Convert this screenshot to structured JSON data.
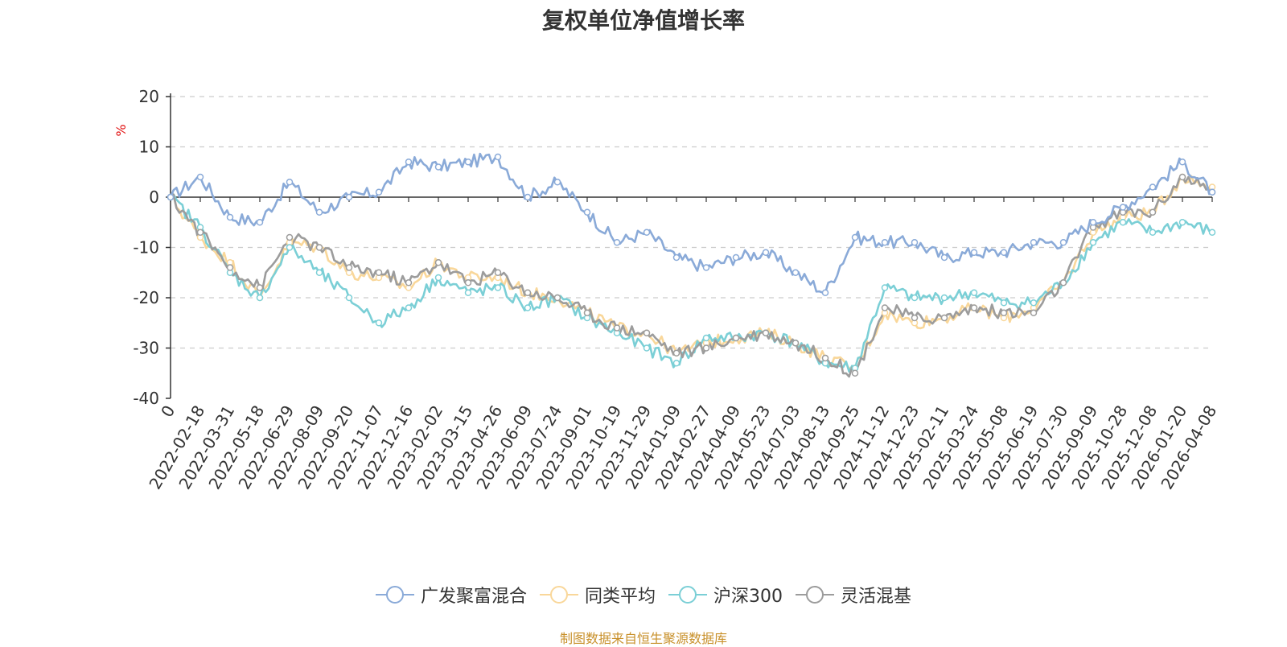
{
  "chart_data": {
    "type": "line",
    "title": "复权单位净值增长率",
    "ylabel": "%",
    "ylim": [
      -40,
      20
    ],
    "yticks": [
      20,
      10,
      0,
      -10,
      -20,
      -30,
      -40
    ],
    "xtick_labels": [
      "0",
      "2022-02-18",
      "2022-03-31",
      "2022-05-18",
      "2022-06-29",
      "2022-08-09",
      "2022-09-20",
      "2022-11-07",
      "2022-12-16",
      "2023-02-02",
      "2023-03-15",
      "2023-04-26",
      "2023-06-09",
      "2023-07-24",
      "2023-09-01",
      "2023-10-19",
      "2023-11-29",
      "2024-01-09",
      "2024-02-27",
      "2024-04-09",
      "2024-05-23",
      "2024-07-03",
      "2024-08-13",
      "2024-09-25",
      "2024-11-12",
      "2024-12-23",
      "2025-02-11",
      "2025-03-24",
      "2025-05-08",
      "2025-06-19",
      "2025-07-30",
      "2025-09-09",
      "2025-10-28",
      "2025-12-08",
      "2026-01-20",
      "2026-04-08"
    ],
    "x_index": [
      0,
      1,
      2,
      3,
      4,
      5,
      6,
      7,
      8,
      9,
      10,
      11,
      12,
      13,
      14,
      15,
      16,
      17,
      18,
      19,
      20,
      21,
      22,
      23,
      24,
      25,
      26,
      27,
      28,
      29,
      30,
      31,
      32,
      33,
      34,
      35
    ],
    "series": [
      {
        "name": "广发聚富混合",
        "color": "#8aaad8",
        "values": [
          0,
          4,
          -4,
          -5,
          3,
          -3,
          0,
          1,
          7,
          6,
          7,
          8,
          0,
          3,
          -3,
          -9,
          -7,
          -12,
          -14,
          -12,
          -11,
          -15,
          -19,
          -8,
          -9,
          -9,
          -12,
          -11,
          -11,
          -9,
          -9,
          -5,
          -2,
          2,
          7,
          1
        ]
      },
      {
        "name": "同类平均",
        "color": "#f9d79a",
        "values": [
          0,
          -8,
          -13,
          -20,
          -9,
          -10,
          -15,
          -16,
          -18,
          -13,
          -16,
          -16,
          -19,
          -20,
          -23,
          -26,
          -27,
          -31,
          -29,
          -28,
          -27,
          -29,
          -32,
          -34,
          -23,
          -25,
          -24,
          -22,
          -24,
          -22,
          -17,
          -7,
          -4,
          -3,
          4,
          2
        ]
      },
      {
        "name": "沪深300",
        "color": "#7bcfd6",
        "values": [
          0,
          -6,
          -15,
          -20,
          -10,
          -15,
          -20,
          -25,
          -22,
          -16,
          -19,
          -18,
          -22,
          -20,
          -24,
          -27,
          -30,
          -33,
          -28,
          -28,
          -27,
          -29,
          -33,
          -34,
          -18,
          -20,
          -20,
          -19,
          -21,
          -21,
          -17,
          -9,
          -5,
          -7,
          -5,
          -7
        ]
      },
      {
        "name": "灵活混基",
        "color": "#9c9c9c",
        "values": [
          0,
          -7,
          -14,
          -18,
          -8,
          -10,
          -14,
          -15,
          -17,
          -13,
          -17,
          -15,
          -19,
          -20,
          -23,
          -26,
          -27,
          -31,
          -30,
          -28,
          -27,
          -29,
          -32,
          -35,
          -22,
          -24,
          -24,
          -22,
          -23,
          -23,
          -17,
          -6,
          -3,
          -3,
          4,
          1
        ]
      }
    ]
  },
  "source": "制图数据来自恒生聚源数据库"
}
